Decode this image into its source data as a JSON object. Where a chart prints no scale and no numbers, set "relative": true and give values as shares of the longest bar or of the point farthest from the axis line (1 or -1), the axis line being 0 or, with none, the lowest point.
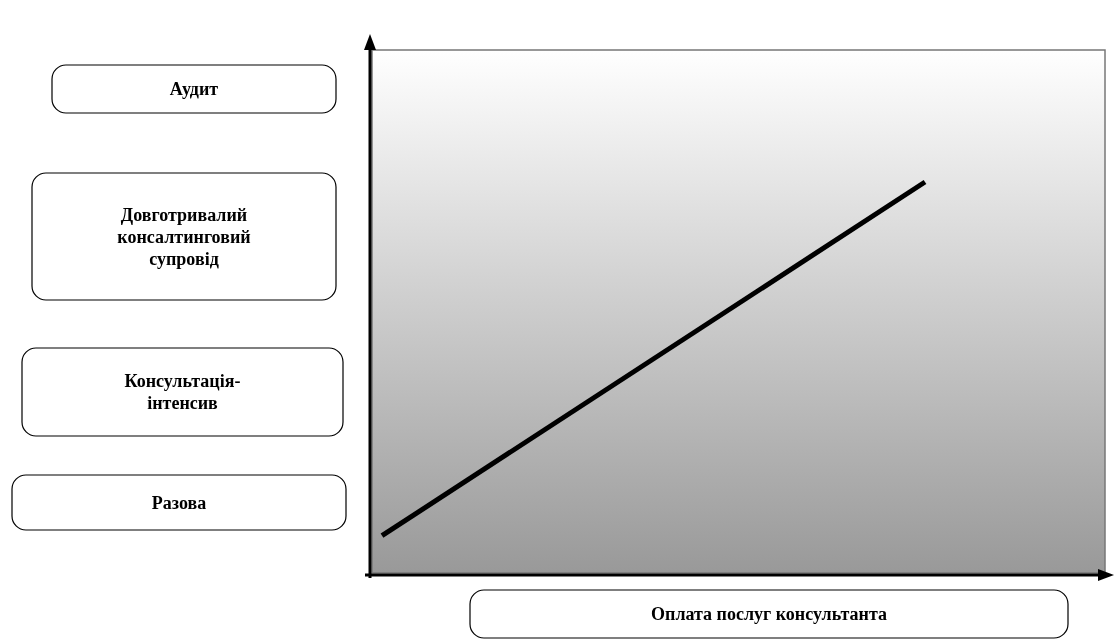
{
  "chart_data": {
    "type": "line",
    "relative": true,
    "categories": [
      null,
      null
    ],
    "series": [
      {
        "color": "#000000",
        "values": [
          0.1,
          1
        ]
      }
    ],
    "xlabel": "Оплата послуг консультанта",
    "annotations": [
      "Аудит",
      "Довготривалий консалтинговий супровід",
      "Консультація-інтенсив",
      "Разова"
    ],
    "grid": false,
    "marker": "none",
    "line_style": "solid"
  }
}
